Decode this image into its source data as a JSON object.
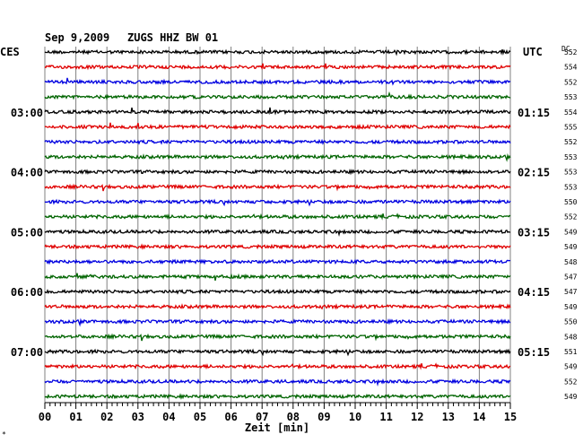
{
  "header": {
    "date": "Sep 9,2009",
    "station": "ZUGS HHZ BW 01",
    "left_tz": "CES",
    "right_tz": "UTC",
    "dc_label": "DC"
  },
  "chart_data": {
    "type": "line",
    "description_free": true,
    "xlabel": "Zeit [min]",
    "xlim": [
      0,
      15
    ],
    "x_ticks": [
      "00",
      "01",
      "02",
      "03",
      "04",
      "05",
      "06",
      "07",
      "08",
      "09",
      "10",
      "11",
      "12",
      "13",
      "14",
      "15"
    ],
    "line_colors": [
      "#000000",
      "#e00000",
      "#0000e0",
      "#006400"
    ],
    "left_hour_labels": [
      "03:00",
      "04:00",
      "05:00",
      "06:00",
      "07:00"
    ],
    "right_hour_labels": [
      "01:15",
      "02:15",
      "03:15",
      "04:15",
      "05:15"
    ],
    "hour_label_trace_index": [
      4,
      8,
      12,
      16,
      20
    ],
    "dc_values": [
      "552",
      "554",
      "552",
      "553",
      "554",
      "555",
      "552",
      "553",
      "553",
      "553",
      "550",
      "552",
      "549",
      "549",
      "548",
      "547",
      "547",
      "549",
      "550",
      "548",
      "551",
      "549",
      "552",
      "549"
    ],
    "trace_count": 24
  },
  "footer": {
    "corner_mark": "*"
  }
}
